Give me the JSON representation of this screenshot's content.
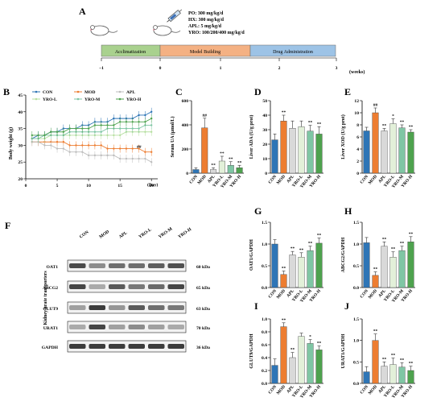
{
  "colors": {
    "CON": "#2e75b6",
    "MOD": "#ed7d31",
    "APL": "#d9d9d9",
    "YRO-L": "#e2f0d9",
    "YRO-M": "#7fc6a4",
    "YRO-H": "#4ea24e",
    "accl": "#a9d18e",
    "model": "#f4b183",
    "drug": "#9dc3e6"
  },
  "icons": [
    "mouse-icon",
    "syringe-icon"
  ],
  "panelA": {
    "letter": "A",
    "dosing": [
      "PO: 300 mg/kg/d",
      "HX: 300 mg/kg/d",
      "APL: 5 mg/kg/d",
      "YRO: 100/200/400 mg/kg/d"
    ],
    "phases": [
      "Acclimatization",
      "Model Building",
      "Drug Administration"
    ],
    "ticks": [
      "−1",
      "0",
      "1",
      "2",
      "3"
    ],
    "unit": "(weeks)"
  },
  "panelB": {
    "letter": "B",
    "ylabel": "Body weight (g)",
    "xunit": "(Day)",
    "xticks": [
      "0",
      "5",
      "10",
      "15",
      "20"
    ],
    "yticks": [
      "20",
      "25",
      "30",
      "35",
      "40",
      "45"
    ],
    "legend": [
      "CON",
      "MOD",
      "APL",
      "YRO-L",
      "YRO-M",
      "YRO-H"
    ],
    "sig": "##"
  },
  "groups": [
    "CON",
    "MOD",
    "APL",
    "YRO-L",
    "YRO-M",
    "YRO-H"
  ],
  "panelF": {
    "letter": "F",
    "side_label": "Kidney urate transporters",
    "lanes": [
      "CON",
      "MOD",
      "APL",
      "YRO-L",
      "YRO-M",
      "YRO-H"
    ],
    "rows": [
      {
        "name": "OAT1",
        "kda": "60 kDa",
        "int": [
          0.78,
          0.45,
          0.6,
          0.6,
          0.68,
          0.75
        ]
      },
      {
        "name": "ABCG2",
        "kda": "65 kDa",
        "int": [
          0.8,
          0.3,
          0.7,
          0.55,
          0.62,
          0.8
        ]
      },
      {
        "name": "GLUT9",
        "kda": "63 kDa",
        "int": [
          0.35,
          0.85,
          0.4,
          0.7,
          0.6,
          0.55
        ]
      },
      {
        "name": "URAT1",
        "kda": "70 kDa",
        "int": [
          0.3,
          0.8,
          0.35,
          0.45,
          0.35,
          0.3
        ]
      },
      {
        "name": "GAPDH",
        "kda": "36 kDa",
        "int": [
          0.85,
          0.85,
          0.85,
          0.85,
          0.85,
          0.85
        ]
      }
    ]
  },
  "chart_data": [
    {
      "panel": "B",
      "type": "line",
      "xlabel": "(Day)",
      "ylabel": "Body weight (g)",
      "xlim": [
        0,
        21
      ],
      "ylim": [
        20,
        45
      ],
      "x": [
        1,
        2,
        3,
        4,
        5,
        6,
        7,
        8,
        9,
        10,
        11,
        12,
        13,
        14,
        15,
        16,
        17,
        18,
        19,
        20
      ],
      "series": [
        {
          "name": "CON",
          "values": [
            32,
            33,
            33,
            34,
            34,
            35,
            35,
            35,
            36,
            36,
            37,
            37,
            37,
            38,
            38,
            38,
            38,
            39,
            39,
            40
          ]
        },
        {
          "name": "MOD",
          "values": [
            31,
            31,
            31,
            31,
            31,
            31,
            30,
            30,
            30,
            30,
            30,
            30,
            29,
            29,
            29,
            29,
            29,
            29,
            28,
            28
          ]
        },
        {
          "name": "APL",
          "values": [
            31,
            31,
            30,
            30,
            29,
            29,
            28,
            28,
            28,
            27,
            27,
            27,
            27,
            27,
            26,
            26,
            26,
            26,
            26,
            25
          ]
        },
        {
          "name": "YRO-L",
          "values": [
            32,
            32,
            32,
            33,
            33,
            33,
            33,
            33,
            33,
            33,
            33,
            33,
            33,
            33,
            33,
            34,
            34,
            34,
            34,
            34
          ]
        },
        {
          "name": "YRO-M",
          "values": [
            32,
            32,
            33,
            33,
            33,
            33,
            34,
            34,
            34,
            34,
            34,
            34,
            35,
            35,
            35,
            35,
            35,
            35,
            36,
            36
          ]
        },
        {
          "name": "YRO-H",
          "values": [
            33,
            33,
            33,
            34,
            34,
            34,
            35,
            35,
            35,
            35,
            36,
            36,
            36,
            36,
            37,
            37,
            37,
            37,
            37,
            38
          ]
        }
      ],
      "annotation": "##"
    },
    {
      "panel": "C",
      "type": "bar",
      "ylabel": "Serum UA (μmol/L)",
      "ylim": [
        0,
        600
      ],
      "yticks": [
        "0",
        "200",
        "400",
        "600"
      ],
      "categories": [
        "CON",
        "MOD",
        "APL",
        "YRO-L",
        "YRO-M",
        "YRO-H"
      ],
      "values": [
        30,
        375,
        30,
        100,
        65,
        45
      ],
      "errors": [
        15,
        80,
        15,
        40,
        30,
        20
      ],
      "sig": [
        "",
        "##",
        "**",
        "**",
        "**",
        "**"
      ]
    },
    {
      "panel": "D",
      "type": "bar",
      "ylabel": "Liver ADA (U/g prot)",
      "ylim": [
        0,
        50
      ],
      "yticks": [
        "0",
        "10",
        "20",
        "30",
        "40",
        "50"
      ],
      "categories": [
        "CON",
        "MOD",
        "APL",
        "YRO-L",
        "YRO-M",
        "YRO-H"
      ],
      "values": [
        23,
        36,
        31,
        32,
        29,
        27
      ],
      "errors": [
        4,
        4,
        5,
        4,
        4,
        5
      ],
      "sig": [
        "",
        "**",
        "",
        "",
        "**",
        "**"
      ]
    },
    {
      "panel": "E",
      "type": "bar",
      "ylabel": "Liver XOD (U/g prot)",
      "ylim": [
        0,
        12
      ],
      "yticks": [
        "0",
        "2",
        "4",
        "6",
        "8",
        "10",
        "12"
      ],
      "categories": [
        "CON",
        "MOD",
        "APL",
        "YRO-L",
        "YRO-M",
        "YRO-H"
      ],
      "values": [
        7,
        10,
        7,
        8.2,
        7.5,
        6.8
      ],
      "errors": [
        0.6,
        0.8,
        0.4,
        0.8,
        0.5,
        0.4
      ],
      "sig": [
        "",
        "##",
        "**",
        "*",
        "**",
        "**"
      ]
    },
    {
      "panel": "G",
      "type": "bar",
      "ylabel": "OAT1/GAPDH",
      "ylim": [
        0,
        1.5
      ],
      "yticks": [
        "0.0",
        "0.5",
        "1.0",
        "1.5"
      ],
      "categories": [
        "CON",
        "MOD",
        "APL",
        "YRO-L",
        "YRO-M",
        "YRO-H"
      ],
      "values": [
        1.0,
        0.3,
        0.75,
        0.7,
        0.85,
        1.02
      ],
      "errors": [
        0.1,
        0.08,
        0.08,
        0.1,
        0.1,
        0.12
      ],
      "sig": [
        "",
        "**",
        "**",
        "**",
        "**",
        "**"
      ]
    },
    {
      "panel": "H",
      "type": "bar",
      "ylabel": "ABCG2/GAPDH",
      "ylim": [
        0,
        1.5
      ],
      "yticks": [
        "0.0",
        "0.5",
        "1.0",
        "1.5"
      ],
      "categories": [
        "CON",
        "MOD",
        "APL",
        "YRO-L",
        "YRO-M",
        "YRO-H"
      ],
      "values": [
        1.03,
        0.28,
        0.95,
        0.7,
        0.85,
        1.05
      ],
      "errors": [
        0.12,
        0.08,
        0.1,
        0.12,
        0.1,
        0.12
      ],
      "sig": [
        "",
        "**",
        "**",
        "**",
        "**",
        "**"
      ]
    },
    {
      "panel": "I",
      "type": "bar",
      "ylabel": "GLUT9/GAPDH",
      "ylim": [
        0,
        1.0
      ],
      "yticks": [
        "0.0",
        "0.2",
        "0.4",
        "0.6",
        "0.8",
        "1.0"
      ],
      "categories": [
        "CON",
        "MOD",
        "APL",
        "YRO-L",
        "YRO-M",
        "YRO-H"
      ],
      "values": [
        0.28,
        0.88,
        0.4,
        0.73,
        0.62,
        0.52
      ],
      "errors": [
        0.1,
        0.06,
        0.08,
        0.05,
        0.06,
        0.06
      ],
      "sig": [
        "",
        "**",
        "**",
        "",
        "*",
        "**"
      ]
    },
    {
      "panel": "J",
      "type": "bar",
      "ylabel": "URAT1/GAPDH",
      "ylim": [
        0,
        1.5
      ],
      "yticks": [
        "0.0",
        "0.5",
        "1.0",
        "1.5"
      ],
      "categories": [
        "CON",
        "MOD",
        "APL",
        "YRO-L",
        "YRO-M",
        "YRO-H"
      ],
      "values": [
        0.27,
        1.0,
        0.4,
        0.44,
        0.38,
        0.3
      ],
      "errors": [
        0.12,
        0.15,
        0.1,
        0.15,
        0.1,
        0.1
      ],
      "sig": [
        "",
        "**",
        "**",
        "**",
        "**",
        "**"
      ]
    }
  ]
}
